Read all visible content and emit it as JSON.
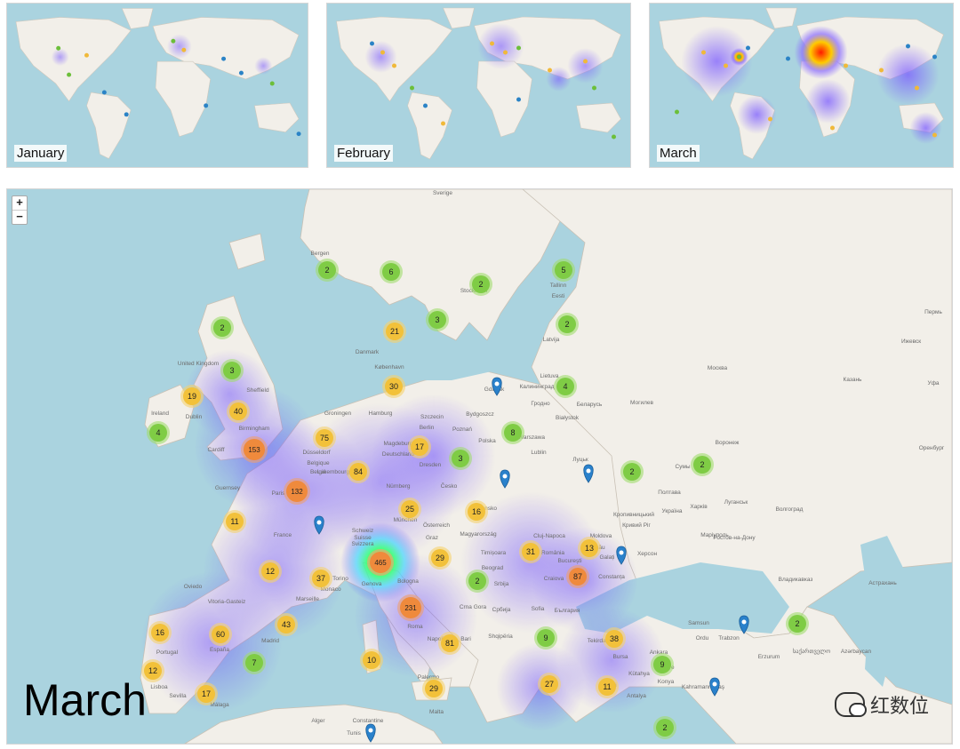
{
  "panels": {
    "january": {
      "label": "January"
    },
    "february": {
      "label": "February"
    },
    "march": {
      "label": "March"
    }
  },
  "main_map": {
    "title": "March",
    "zoom_in": "+",
    "zoom_out": "−",
    "clusters": [
      {
        "label": "2",
        "color": "green"
      },
      {
        "label": "6",
        "color": "green"
      },
      {
        "label": "2",
        "color": "green"
      },
      {
        "label": "5",
        "color": "green"
      },
      {
        "label": "2",
        "color": "green"
      },
      {
        "label": "3",
        "color": "green"
      },
      {
        "label": "2",
        "color": "green"
      },
      {
        "label": "21",
        "color": "yellow"
      },
      {
        "label": "3",
        "color": "green"
      },
      {
        "label": "19",
        "color": "yellow"
      },
      {
        "label": "40",
        "color": "yellow"
      },
      {
        "label": "30",
        "color": "yellow"
      },
      {
        "label": "4",
        "color": "green"
      },
      {
        "label": "4",
        "color": "green"
      },
      {
        "label": "153",
        "color": "orange"
      },
      {
        "label": "75",
        "color": "yellow"
      },
      {
        "label": "17",
        "color": "yellow"
      },
      {
        "label": "8",
        "color": "green"
      },
      {
        "label": "84",
        "color": "yellow"
      },
      {
        "label": "3",
        "color": "green"
      },
      {
        "label": "2",
        "color": "green"
      },
      {
        "label": "2",
        "color": "green"
      },
      {
        "label": "132",
        "color": "orange"
      },
      {
        "label": "25",
        "color": "yellow"
      },
      {
        "label": "16",
        "color": "yellow"
      },
      {
        "label": "11",
        "color": "yellow"
      },
      {
        "label": "13",
        "color": "yellow"
      },
      {
        "label": "465",
        "color": "orange"
      },
      {
        "label": "29",
        "color": "yellow"
      },
      {
        "label": "31",
        "color": "yellow"
      },
      {
        "label": "12",
        "color": "yellow"
      },
      {
        "label": "37",
        "color": "yellow"
      },
      {
        "label": "2",
        "color": "green"
      },
      {
        "label": "87",
        "color": "orange"
      },
      {
        "label": "231",
        "color": "orange"
      },
      {
        "label": "16",
        "color": "yellow"
      },
      {
        "label": "60",
        "color": "yellow"
      },
      {
        "label": "43",
        "color": "yellow"
      },
      {
        "label": "81",
        "color": "yellow"
      },
      {
        "label": "9",
        "color": "green"
      },
      {
        "label": "38",
        "color": "yellow"
      },
      {
        "label": "2",
        "color": "green"
      },
      {
        "label": "7",
        "color": "green"
      },
      {
        "label": "10",
        "color": "yellow"
      },
      {
        "label": "9",
        "color": "green"
      },
      {
        "label": "12",
        "color": "yellow"
      },
      {
        "label": "17",
        "color": "yellow"
      },
      {
        "label": "29",
        "color": "yellow"
      },
      {
        "label": "27",
        "color": "yellow"
      },
      {
        "label": "11",
        "color": "yellow"
      },
      {
        "label": "2",
        "color": "green"
      }
    ],
    "place_labels": [
      "Sverige",
      "Bergen",
      "Stockholm",
      "Tallinn",
      "Eesti",
      "Latvija",
      "Danmark",
      "København",
      "United Kingdom",
      "Ireland",
      "Dublin",
      "Birmingham",
      "Sheffield",
      "Cardiff",
      "Lietuva",
      "Gdańsk",
      "Калининград",
      "Гродно",
      "Białystok",
      "Беларусь",
      "Могилев",
      "Bydgoszcz",
      "Szczecin",
      "Groningen",
      "Hamburg",
      "Berlin",
      "Poznań",
      "Warszawa",
      "Polska",
      "Magdeburg",
      "Düsseldorf",
      "Deutschland",
      "Lublin",
      "Луцьк",
      "Сумы",
      "Воронеж",
      "Belgique",
      "België",
      "Luxembourg",
      "Dresden",
      "Česko",
      "Nürnberg",
      "Guernsey",
      "Paris",
      "France",
      "München",
      "Slovensko",
      "Österreich",
      "Україна",
      "Харків",
      "Полтава",
      "Луганськ",
      "Кропивницький",
      "Кривий Ріг",
      "Маріуполь",
      "Волгоград",
      "Ростов-на-Дону",
      "Херсон",
      "Moldova",
      "Chișinău",
      "Schweiz",
      "Suisse",
      "Svizzera",
      "Graz",
      "Magyarország",
      "Cluj-Napoca",
      "România",
      "Galați",
      "Timișoara",
      "Torino",
      "Genova",
      "Bologna",
      "Beograd",
      "Srbija",
      "Craiova",
      "Constanța",
      "Bucureşti",
      "Monaco",
      "Marseille",
      "Crna Gora",
      "Србија",
      "Sofia",
      "България",
      "Roma",
      "Bari",
      "Napoli",
      "Shqipëria",
      "Tekirdağ",
      "Bursa",
      "Ankara",
      "Türkiye",
      "Trabzon",
      "Ordu",
      "Samsun",
      "Erzurum",
      "Kütahya",
      "Konya",
      "Kahramanmaraş",
      "Antalya",
      "Denizli",
      "España",
      "Oviedo",
      "Vitoria-Gasteiz",
      "Madrid",
      "Portugal",
      "Lisboa",
      "Sevilla",
      "Málaga",
      "Palermo",
      "Malta",
      "Alger",
      "Constantine",
      "Tunis",
      "Владикавказ",
      "საქართველო",
      "Azərbaycan",
      "Москва",
      "Казань",
      "Пермь",
      "Ижевск",
      "Уфа",
      "Оренбург",
      "Астрахань"
    ],
    "watermark": "红数位"
  }
}
